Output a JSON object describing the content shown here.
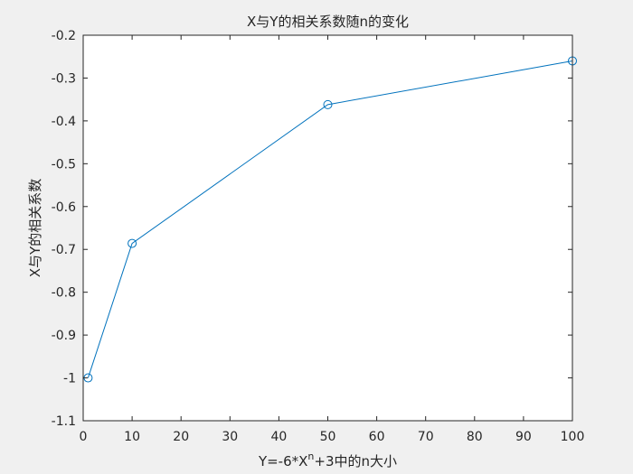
{
  "chart_data": {
    "type": "line",
    "title": "X与Y的相关系数随n的变化",
    "xlabel": "Y=-6*X",
    "xlabel_superscript": "n",
    "xlabel_suffix": "+3中的n大小",
    "ylabel": "X与Y的相关系数",
    "xlim": [
      0,
      100
    ],
    "ylim": [
      -1.1,
      -0.2
    ],
    "xticks": [
      0,
      10,
      20,
      30,
      40,
      50,
      60,
      70,
      80,
      90,
      100
    ],
    "yticks": [
      -0.2,
      -0.3,
      -0.4,
      -0.5,
      -0.6,
      -0.7,
      -0.8,
      -0.9,
      -1,
      -1.1
    ],
    "grid": false,
    "series": [
      {
        "x": [
          1,
          10,
          50,
          100
        ],
        "y": [
          -1.0,
          -0.686,
          -0.362,
          -0.26
        ],
        "color": "#0072bd",
        "marker": "circle"
      }
    ]
  }
}
